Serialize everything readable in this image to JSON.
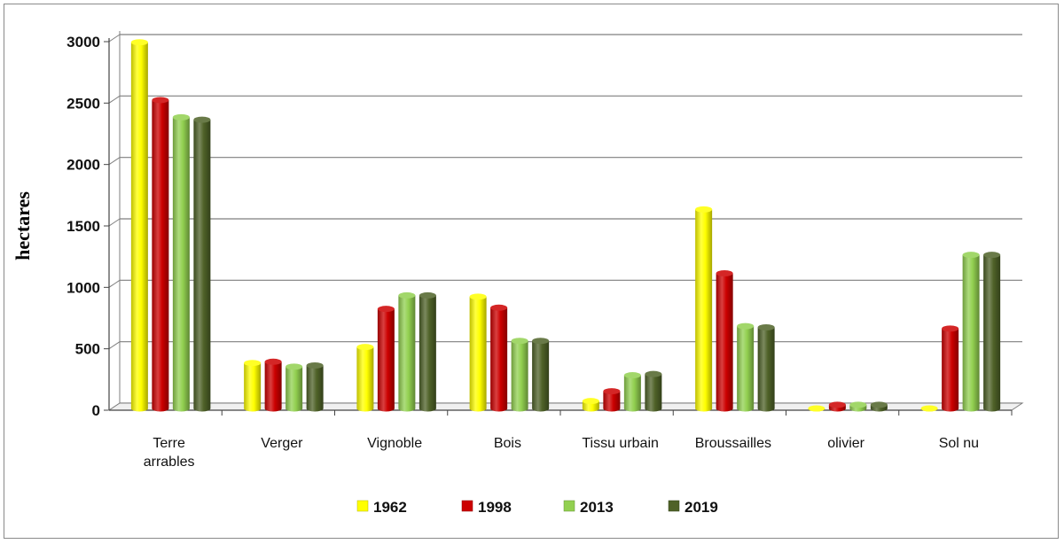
{
  "chart_data": {
    "type": "bar",
    "title": "",
    "xlabel": "",
    "ylabel": "hectares",
    "ylim": [
      0,
      3000
    ],
    "yticks": [
      "0",
      "500",
      "1000",
      "1500",
      "2000",
      "2500",
      "3000"
    ],
    "grid": true,
    "legend_position": "bottom",
    "categories": [
      [
        "Terre",
        "arrables"
      ],
      [
        "Verger"
      ],
      [
        "Vignoble"
      ],
      [
        "Bois"
      ],
      [
        "Tissu urbain"
      ],
      [
        "Broussailles"
      ],
      [
        "olivier"
      ],
      [
        "Sol nu"
      ]
    ],
    "series": [
      {
        "name": "1962",
        "color": "#ffff00",
        "values": [
          2980,
          370,
          500,
          910,
          60,
          1620,
          0,
          0
        ]
      },
      {
        "name": "1998",
        "color": "#cc0000",
        "values": [
          2510,
          380,
          810,
          820,
          140,
          1100,
          30,
          650
        ]
      },
      {
        "name": "2013",
        "color": "#92d050",
        "values": [
          2370,
          340,
          920,
          550,
          270,
          670,
          30,
          1250
        ]
      },
      {
        "name": "2019",
        "color": "#4f6228",
        "values": [
          2350,
          350,
          920,
          550,
          280,
          660,
          30,
          1250
        ]
      }
    ]
  }
}
